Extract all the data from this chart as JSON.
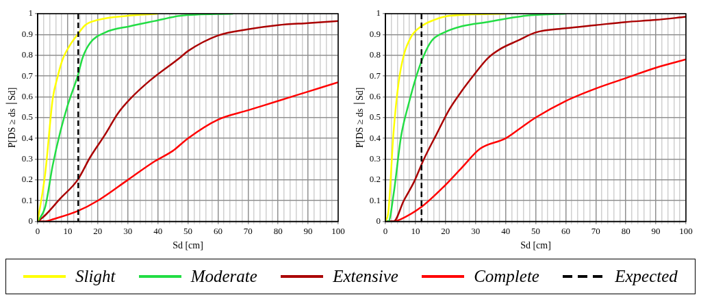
{
  "chart_data": [
    {
      "type": "line",
      "xlabel": "Sd [cm]",
      "ylabel": "P[DS ≥ ds ׀Sd]",
      "xlim": [
        0,
        100
      ],
      "ylim": [
        0,
        1
      ],
      "grid": true,
      "legend": "bottom",
      "marker": "none",
      "line_style": "solid",
      "xticks": [
        0,
        {
          "value": 2,
          "label": null
        },
        {
          "value": 4,
          "label": null
        },
        {
          "value": 6,
          "label": null
        },
        {
          "value": 8,
          "label": null
        },
        10,
        {
          "value": 12,
          "label": null
        },
        {
          "value": 14,
          "label": null
        },
        {
          "value": 16,
          "label": null
        },
        {
          "value": 18,
          "label": null
        },
        20,
        {
          "value": 22,
          "label": null
        },
        {
          "value": 24,
          "label": null
        },
        {
          "value": 26,
          "label": null
        },
        {
          "value": 28,
          "label": null
        },
        30,
        {
          "value": 32,
          "label": null
        },
        {
          "value": 34,
          "label": null
        },
        {
          "value": 36,
          "label": null
        },
        {
          "value": 38,
          "label": null
        },
        40,
        {
          "value": 42,
          "label": null
        },
        {
          "value": 44,
          "label": null
        },
        {
          "value": 46,
          "label": null
        },
        {
          "value": 48,
          "label": null
        },
        50,
        {
          "value": 52,
          "label": null
        },
        {
          "value": 54,
          "label": null
        },
        {
          "value": 56,
          "label": null
        },
        {
          "value": 58,
          "label": null
        },
        60,
        {
          "value": 62,
          "label": null
        },
        {
          "value": 64,
          "label": null
        },
        {
          "value": 66,
          "label": null
        },
        {
          "value": 68,
          "label": null
        },
        70,
        {
          "value": 72,
          "label": null
        },
        {
          "value": 74,
          "label": null
        },
        {
          "value": 76,
          "label": null
        },
        {
          "value": 78,
          "label": null
        },
        80,
        {
          "value": 82,
          "label": null
        },
        {
          "value": 84,
          "label": null
        },
        {
          "value": 86,
          "label": null
        },
        {
          "value": 88,
          "label": null
        },
        90,
        {
          "value": 92,
          "label": null
        },
        {
          "value": 94,
          "label": null
        },
        {
          "value": 96,
          "label": null
        },
        {
          "value": 98,
          "label": null
        },
        100
      ],
      "yticks": [
        0,
        0.1,
        0.2,
        0.3,
        0.4,
        0.5,
        0.6,
        0.7,
        0.8,
        0.9,
        1
      ],
      "ref_lines": [
        {
          "axis": "x",
          "value": 13.5,
          "label": "Expected",
          "color": "#000000",
          "line_style": "dashed"
        }
      ],
      "series": [
        {
          "name": "Slight",
          "color": "#ffff00",
          "x": [
            0,
            2.5,
            5,
            6.7,
            8.3,
            10.8,
            13.3,
            15.8,
            20,
            30,
            40
          ],
          "values": [
            0,
            0.23,
            0.59,
            0.7,
            0.78,
            0.85,
            0.9,
            0.945,
            0.97,
            0.99,
            1
          ]
        },
        {
          "name": "Moderate",
          "color": "#22dd44",
          "x": [
            0,
            2.5,
            5,
            7.5,
            10,
            13.3,
            15,
            17.5,
            22.5,
            30.8,
            39,
            47.5,
            65
          ],
          "values": [
            0,
            0.07,
            0.27,
            0.43,
            0.56,
            0.7,
            0.79,
            0.86,
            0.91,
            0.94,
            0.965,
            0.99,
            1
          ]
        },
        {
          "name": "Extensive",
          "color": "#aa0000",
          "x": [
            0,
            2.5,
            7.5,
            13.3,
            17.5,
            22.5,
            26.7,
            30.8,
            37.5,
            47.5,
            50,
            60,
            70,
            80,
            90,
            100
          ],
          "values": [
            0,
            0.03,
            0.11,
            0.2,
            0.31,
            0.42,
            0.52,
            0.59,
            0.68,
            0.79,
            0.82,
            0.895,
            0.925,
            0.945,
            0.955,
            0.965
          ]
        },
        {
          "name": "Complete",
          "color": "#ff0000",
          "x": [
            0,
            2.5,
            5,
            13.3,
            20,
            30,
            39,
            45,
            50,
            60,
            70,
            80,
            90,
            100
          ],
          "values": [
            0,
            0,
            0.01,
            0.05,
            0.1,
            0.2,
            0.29,
            0.34,
            0.4,
            0.49,
            0.535,
            0.58,
            0.625,
            0.67
          ]
        }
      ]
    },
    {
      "type": "line",
      "xlabel": "Sd [cm]",
      "ylabel": "P[DS ≥ ds ׀Sd]",
      "xlim": [
        0,
        100
      ],
      "ylim": [
        0,
        1
      ],
      "grid": true,
      "legend": "bottom",
      "marker": "none",
      "line_style": "solid",
      "xticks": [
        0,
        {
          "value": 2,
          "label": null
        },
        {
          "value": 4,
          "label": null
        },
        {
          "value": 6,
          "label": null
        },
        {
          "value": 8,
          "label": null
        },
        10,
        {
          "value": 12,
          "label": null
        },
        {
          "value": 14,
          "label": null
        },
        {
          "value": 16,
          "label": null
        },
        {
          "value": 18,
          "label": null
        },
        20,
        {
          "value": 22,
          "label": null
        },
        {
          "value": 24,
          "label": null
        },
        {
          "value": 26,
          "label": null
        },
        {
          "value": 28,
          "label": null
        },
        30,
        {
          "value": 32,
          "label": null
        },
        {
          "value": 34,
          "label": null
        },
        {
          "value": 36,
          "label": null
        },
        {
          "value": 38,
          "label": null
        },
        40,
        {
          "value": 42,
          "label": null
        },
        {
          "value": 44,
          "label": null
        },
        {
          "value": 46,
          "label": null
        },
        {
          "value": 48,
          "label": null
        },
        50,
        {
          "value": 52,
          "label": null
        },
        {
          "value": 54,
          "label": null
        },
        {
          "value": 56,
          "label": null
        },
        {
          "value": 58,
          "label": null
        },
        60,
        {
          "value": 62,
          "label": null
        },
        {
          "value": 64,
          "label": null
        },
        {
          "value": 66,
          "label": null
        },
        {
          "value": 68,
          "label": null
        },
        70,
        {
          "value": 72,
          "label": null
        },
        {
          "value": 74,
          "label": null
        },
        {
          "value": 76,
          "label": null
        },
        {
          "value": 78,
          "label": null
        },
        80,
        {
          "value": 82,
          "label": null
        },
        {
          "value": 84,
          "label": null
        },
        {
          "value": 86,
          "label": null
        },
        {
          "value": 88,
          "label": null
        },
        90,
        {
          "value": 92,
          "label": null
        },
        {
          "value": 94,
          "label": null
        },
        {
          "value": 96,
          "label": null
        },
        {
          "value": 98,
          "label": null
        },
        100
      ],
      "yticks": [
        0,
        0.1,
        0.2,
        0.3,
        0.4,
        0.5,
        0.6,
        0.7,
        0.8,
        0.9,
        1
      ],
      "ref_lines": [
        {
          "axis": "x",
          "value": 12,
          "color": "#000000",
          "line_style": "dashed"
        }
      ],
      "series": [
        {
          "name": "Slight",
          "color": "#ffff00",
          "x": [
            0,
            1,
            2.7,
            4.4,
            6.1,
            8.6,
            12,
            16.2,
            21.3,
            40
          ],
          "values": [
            0,
            0.05,
            0.43,
            0.67,
            0.8,
            0.89,
            0.94,
            0.97,
            0.99,
            1
          ]
        },
        {
          "name": "Moderate",
          "color": "#22dd44",
          "x": [
            0,
            1,
            2.7,
            5.2,
            7.8,
            10.3,
            12.8,
            15.4,
            19.6,
            25.5,
            34,
            46.6,
            60
          ],
          "values": [
            0,
            0,
            0.13,
            0.41,
            0.57,
            0.7,
            0.8,
            0.87,
            0.91,
            0.94,
            0.96,
            0.99,
            1
          ]
        },
        {
          "name": "Extensive",
          "color": "#aa0000",
          "x": [
            0,
            2.7,
            6.1,
            9.5,
            12.8,
            17,
            21.3,
            25.5,
            29.7,
            34,
            38.2,
            44,
            50,
            60,
            70,
            80,
            90,
            100
          ],
          "values": [
            0,
            0,
            0.1,
            0.19,
            0.3,
            0.42,
            0.54,
            0.63,
            0.71,
            0.785,
            0.83,
            0.87,
            0.91,
            0.93,
            0.945,
            0.96,
            0.97,
            0.985
          ]
        },
        {
          "name": "Complete",
          "color": "#ff0000",
          "x": [
            0,
            2.7,
            5,
            12,
            19.6,
            25.5,
            31.5,
            40,
            45,
            50,
            60,
            70,
            80,
            90,
            100
          ],
          "values": [
            0,
            0,
            0.01,
            0.07,
            0.17,
            0.26,
            0.35,
            0.4,
            0.45,
            0.5,
            0.58,
            0.64,
            0.69,
            0.74,
            0.78
          ]
        }
      ]
    }
  ]
}
